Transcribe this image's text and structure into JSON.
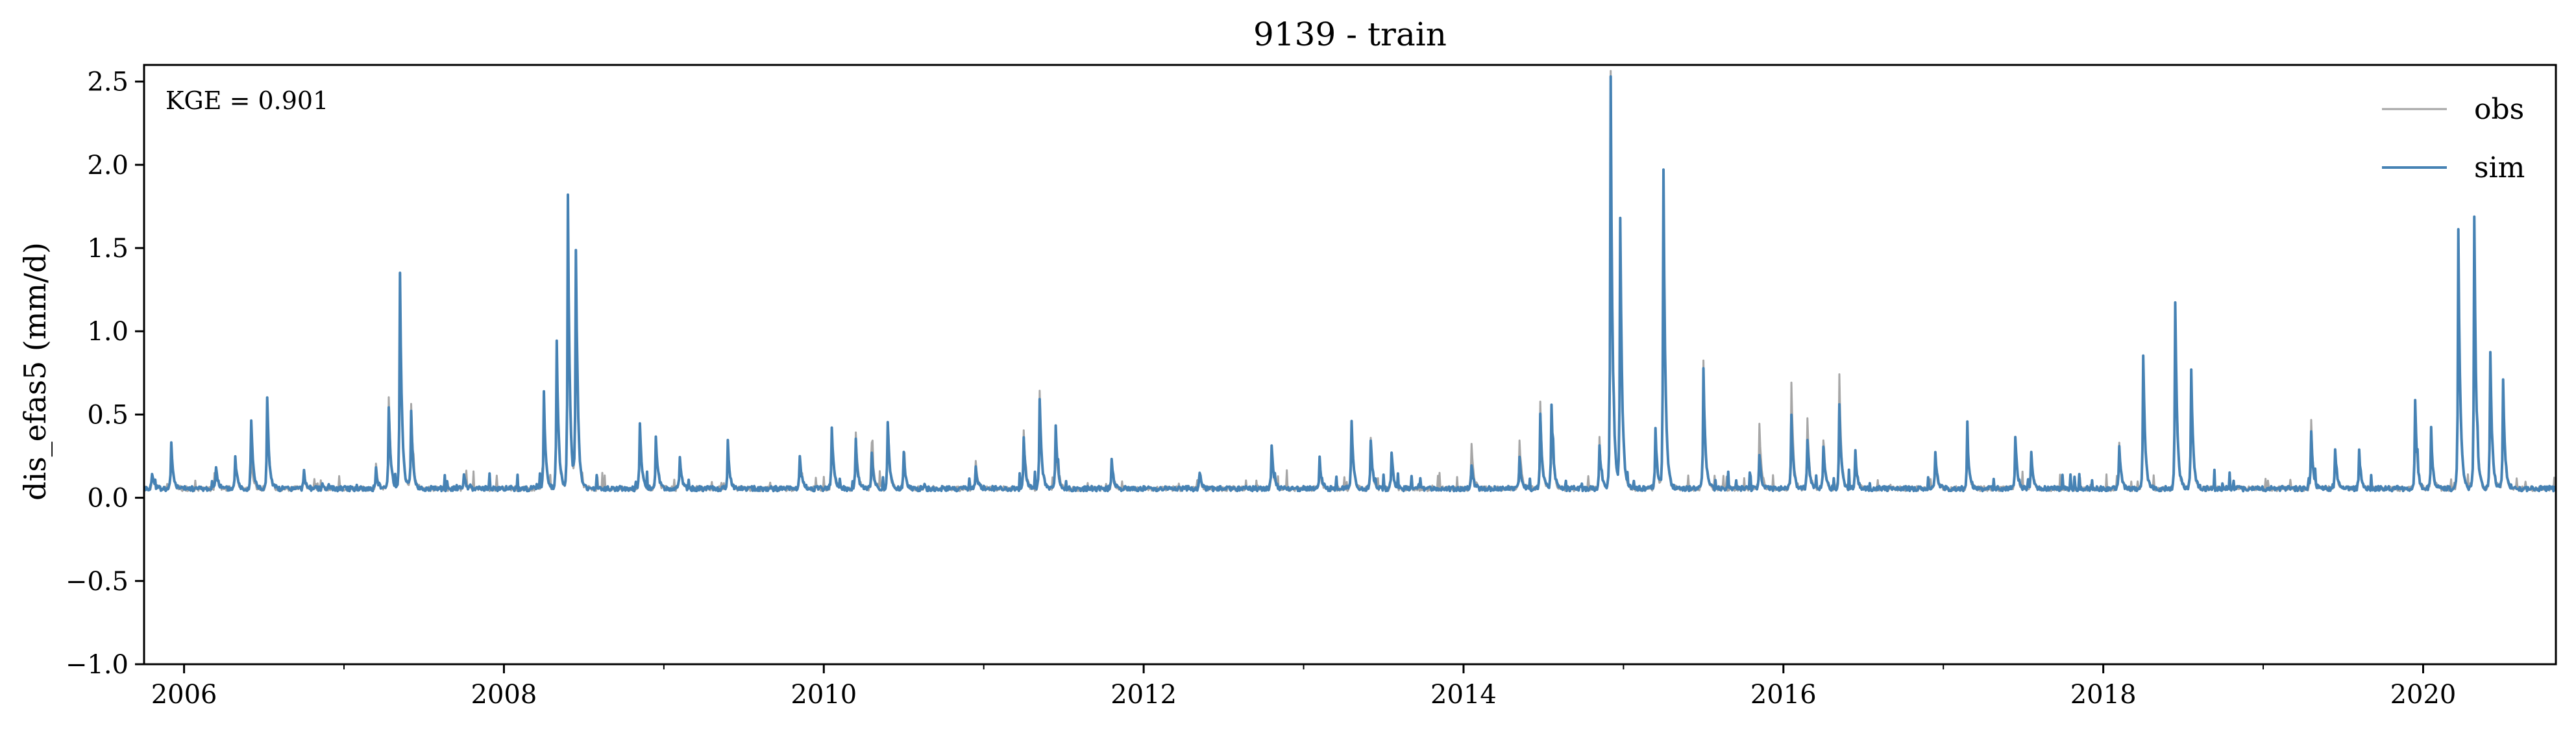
{
  "chart_data": {
    "type": "line",
    "title": "9139 - train",
    "xlabel": "",
    "ylabel": "dis_efas5 (mm/d)",
    "xlim": [
      2005.75,
      2020.83
    ],
    "ylim": [
      -1.0,
      2.6
    ],
    "x_ticks": [
      2006,
      2008,
      2010,
      2012,
      2014,
      2016,
      2018,
      2020
    ],
    "x_tick_labels": [
      "2006",
      "2008",
      "2010",
      "2012",
      "2014",
      "2016",
      "2018",
      "2020"
    ],
    "y_ticks": [
      -1.0,
      -0.5,
      0.0,
      0.5,
      1.0,
      1.5,
      2.0,
      2.5
    ],
    "y_tick_labels": [
      "−1.0",
      "−0.5",
      "0.0",
      "0.5",
      "1.0",
      "1.5",
      "2.0",
      "2.5"
    ],
    "grid": false,
    "legend_position": "top-right",
    "annotation": "KGE = 0.901",
    "baseline": 0.04,
    "series": [
      {
        "name": "obs",
        "color": "#a6a6a6",
        "peaks": [
          [
            2005.8,
            0.09
          ],
          [
            2005.92,
            0.25
          ],
          [
            2006.2,
            0.12
          ],
          [
            2006.32,
            0.18
          ],
          [
            2006.42,
            0.2
          ],
          [
            2006.52,
            0.5
          ],
          [
            2006.75,
            0.08
          ],
          [
            2007.2,
            0.15
          ],
          [
            2007.28,
            0.55
          ],
          [
            2007.35,
            1.25
          ],
          [
            2007.42,
            0.5
          ],
          [
            2007.75,
            0.07
          ],
          [
            2008.25,
            0.5
          ],
          [
            2008.33,
            0.85
          ],
          [
            2008.4,
            1.6
          ],
          [
            2008.45,
            1.35
          ],
          [
            2008.85,
            0.38
          ],
          [
            2008.95,
            0.3
          ],
          [
            2009.1,
            0.18
          ],
          [
            2009.4,
            0.25
          ],
          [
            2009.85,
            0.18
          ],
          [
            2010.05,
            0.35
          ],
          [
            2010.2,
            0.35
          ],
          [
            2010.3,
            0.28
          ],
          [
            2010.4,
            0.38
          ],
          [
            2010.5,
            0.2
          ],
          [
            2010.95,
            0.18
          ],
          [
            2011.25,
            0.35
          ],
          [
            2011.35,
            0.6
          ],
          [
            2011.45,
            0.35
          ],
          [
            2011.8,
            0.15
          ],
          [
            2012.35,
            0.08
          ],
          [
            2012.8,
            0.25
          ],
          [
            2013.1,
            0.15
          ],
          [
            2013.3,
            0.4
          ],
          [
            2013.42,
            0.3
          ],
          [
            2013.55,
            0.2
          ],
          [
            2014.05,
            0.28
          ],
          [
            2014.35,
            0.3
          ],
          [
            2014.48,
            0.52
          ],
          [
            2014.55,
            0.45
          ],
          [
            2014.85,
            0.3
          ],
          [
            2014.92,
            2.45
          ],
          [
            2014.98,
            1.5
          ],
          [
            2015.2,
            0.3
          ],
          [
            2015.25,
            1.85
          ],
          [
            2015.5,
            0.78
          ],
          [
            2015.85,
            0.4
          ],
          [
            2016.05,
            0.65
          ],
          [
            2016.15,
            0.42
          ],
          [
            2016.25,
            0.3
          ],
          [
            2016.35,
            0.68
          ],
          [
            2016.45,
            0.2
          ],
          [
            2016.95,
            0.2
          ],
          [
            2017.15,
            0.3
          ],
          [
            2017.45,
            0.3
          ],
          [
            2017.55,
            0.2
          ],
          [
            2018.1,
            0.28
          ],
          [
            2018.25,
            0.78
          ],
          [
            2018.45,
            1.1
          ],
          [
            2018.55,
            0.7
          ],
          [
            2019.3,
            0.42
          ],
          [
            2019.45,
            0.22
          ],
          [
            2019.6,
            0.2
          ],
          [
            2019.95,
            0.5
          ],
          [
            2020.05,
            0.3
          ],
          [
            2020.22,
            1.5
          ],
          [
            2020.32,
            1.6
          ],
          [
            2020.42,
            0.8
          ],
          [
            2020.5,
            0.6
          ]
        ]
      },
      {
        "name": "sim",
        "color": "#4682b4",
        "peaks": [
          [
            2005.8,
            0.1
          ],
          [
            2005.92,
            0.27
          ],
          [
            2006.2,
            0.14
          ],
          [
            2006.32,
            0.2
          ],
          [
            2006.42,
            0.42
          ],
          [
            2006.52,
            0.55
          ],
          [
            2006.75,
            0.1
          ],
          [
            2007.2,
            0.12
          ],
          [
            2007.28,
            0.5
          ],
          [
            2007.35,
            1.3
          ],
          [
            2007.42,
            0.45
          ],
          [
            2007.75,
            0.08
          ],
          [
            2008.25,
            0.55
          ],
          [
            2008.33,
            0.9
          ],
          [
            2008.4,
            1.75
          ],
          [
            2008.45,
            1.42
          ],
          [
            2008.85,
            0.4
          ],
          [
            2008.95,
            0.32
          ],
          [
            2009.1,
            0.2
          ],
          [
            2009.4,
            0.28
          ],
          [
            2009.85,
            0.2
          ],
          [
            2010.05,
            0.38
          ],
          [
            2010.2,
            0.3
          ],
          [
            2010.3,
            0.22
          ],
          [
            2010.4,
            0.4
          ],
          [
            2010.5,
            0.22
          ],
          [
            2010.95,
            0.12
          ],
          [
            2011.25,
            0.3
          ],
          [
            2011.35,
            0.55
          ],
          [
            2011.45,
            0.38
          ],
          [
            2011.8,
            0.18
          ],
          [
            2012.35,
            0.1
          ],
          [
            2012.8,
            0.27
          ],
          [
            2013.1,
            0.18
          ],
          [
            2013.3,
            0.42
          ],
          [
            2013.42,
            0.3
          ],
          [
            2013.55,
            0.22
          ],
          [
            2014.05,
            0.15
          ],
          [
            2014.35,
            0.2
          ],
          [
            2014.48,
            0.45
          ],
          [
            2014.55,
            0.5
          ],
          [
            2014.85,
            0.25
          ],
          [
            2014.92,
            2.48
          ],
          [
            2014.98,
            1.6
          ],
          [
            2015.2,
            0.35
          ],
          [
            2015.25,
            1.92
          ],
          [
            2015.5,
            0.72
          ],
          [
            2015.85,
            0.2
          ],
          [
            2016.05,
            0.45
          ],
          [
            2016.15,
            0.3
          ],
          [
            2016.25,
            0.25
          ],
          [
            2016.35,
            0.5
          ],
          [
            2016.45,
            0.22
          ],
          [
            2016.95,
            0.22
          ],
          [
            2017.15,
            0.32
          ],
          [
            2017.45,
            0.32
          ],
          [
            2017.55,
            0.22
          ],
          [
            2018.1,
            0.25
          ],
          [
            2018.25,
            0.8
          ],
          [
            2018.45,
            1.12
          ],
          [
            2018.55,
            0.72
          ],
          [
            2019.3,
            0.35
          ],
          [
            2019.45,
            0.25
          ],
          [
            2019.6,
            0.22
          ],
          [
            2019.95,
            0.52
          ],
          [
            2020.05,
            0.32
          ],
          [
            2020.22,
            1.55
          ],
          [
            2020.32,
            1.62
          ],
          [
            2020.42,
            0.82
          ],
          [
            2020.5,
            0.65
          ]
        ]
      }
    ]
  }
}
